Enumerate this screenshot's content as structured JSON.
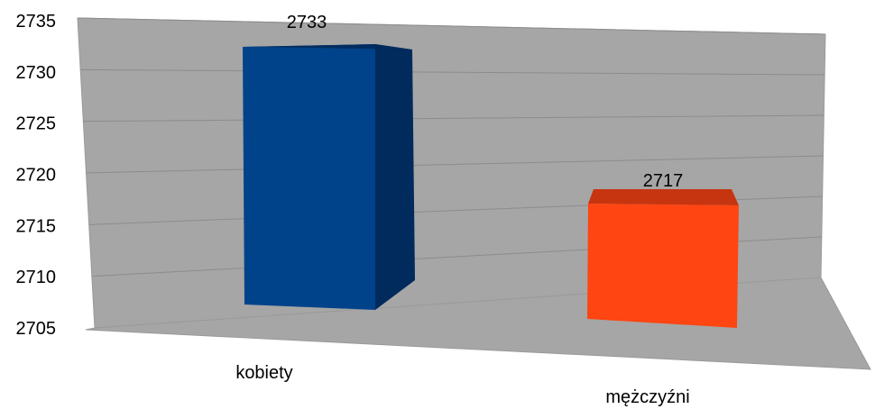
{
  "chart_data": {
    "type": "bar",
    "style": "3d-perspective",
    "categories": [
      "kobiety",
      "mężczyźni"
    ],
    "values": [
      2733,
      2717
    ],
    "data_labels": [
      "2733",
      "2717"
    ],
    "y_ticks": [
      "2705",
      "2710",
      "2715",
      "2720",
      "2725",
      "2730",
      "2735"
    ],
    "ylim": [
      2705,
      2735
    ],
    "grid": true,
    "legend": "none",
    "colors": {
      "bar_1_front": "#00438a",
      "bar_1_side": "#002b5c",
      "bar_2_front": "#ff4512",
      "bar_2_top": "#c73510",
      "wall": "#a6a6a6",
      "floor": "#a6a6a6",
      "gridline": "#8c8c8c"
    }
  }
}
